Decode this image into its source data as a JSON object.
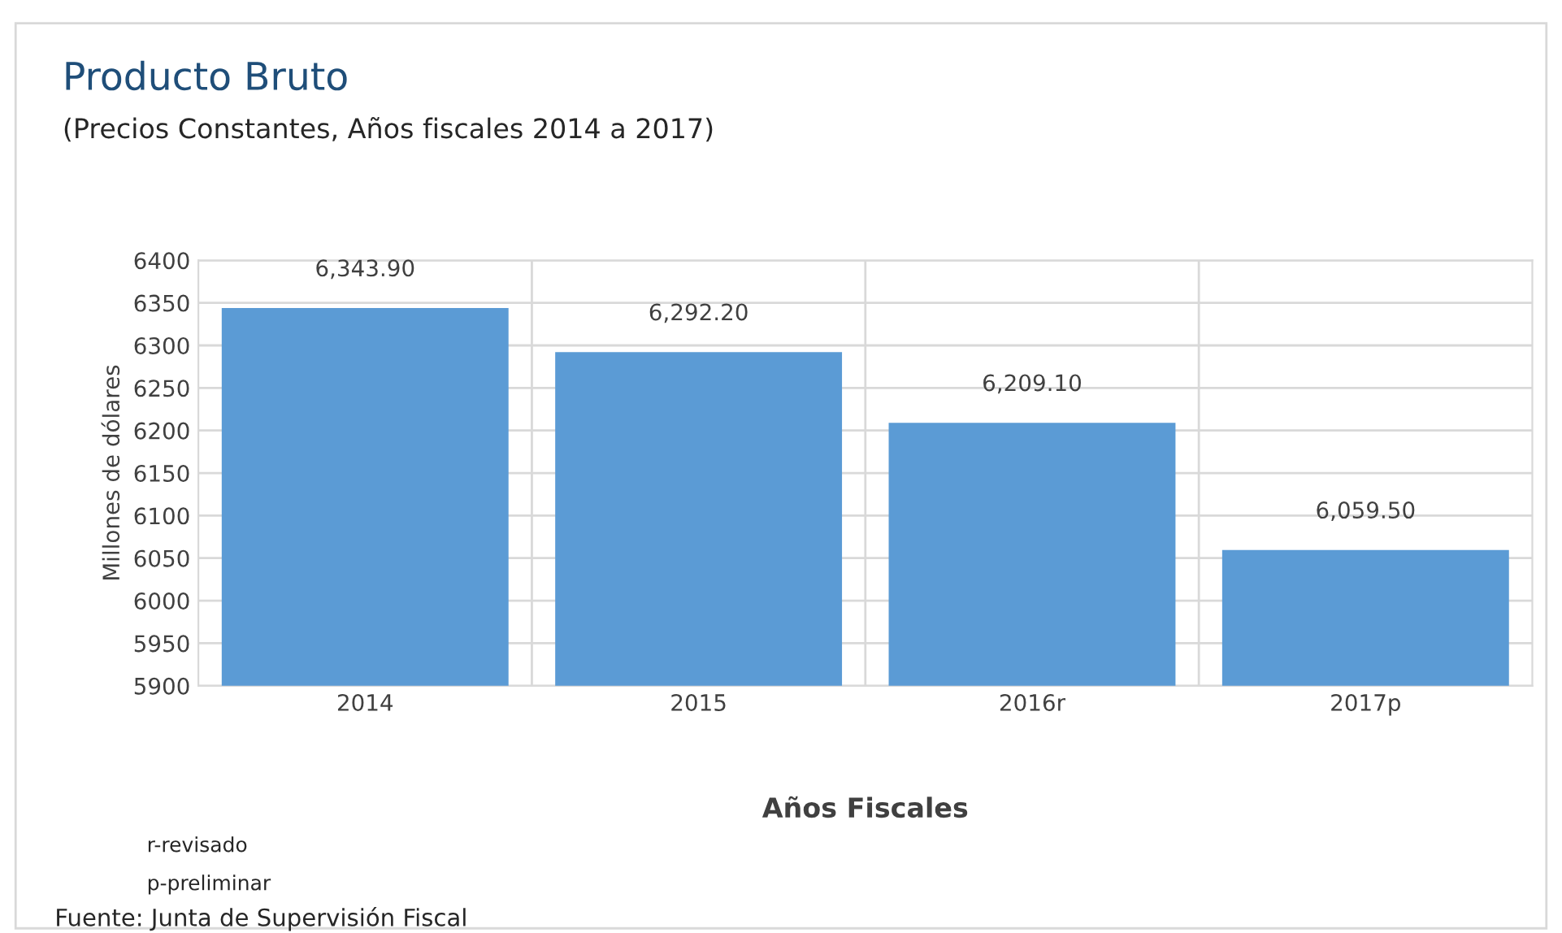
{
  "chart_data": {
    "type": "bar",
    "title": "Producto Bruto",
    "subtitle": "(Precios Constantes, Años fiscales 2014 a 2017)",
    "xlabel": "Años Fiscales",
    "ylabel": "Millones de dólares",
    "categories": [
      "2014",
      "2015",
      "2016r",
      "2017p"
    ],
    "values": [
      6343.9,
      6292.2,
      6209.1,
      6059.5
    ],
    "value_labels": [
      "6,343.90",
      "6,292.20",
      "6,209.10",
      "6,059.50"
    ],
    "color": "#5b9bd5",
    "ylim": [
      5900,
      6400
    ],
    "yticks": [
      5900,
      5950,
      6000,
      6050,
      6100,
      6150,
      6200,
      6250,
      6300,
      6350,
      6400
    ],
    "grid": true,
    "legend": false,
    "annotations": [
      "r-revisado",
      "p-preliminar",
      "Fuente: Junta de Supervisión Fiscal"
    ]
  }
}
